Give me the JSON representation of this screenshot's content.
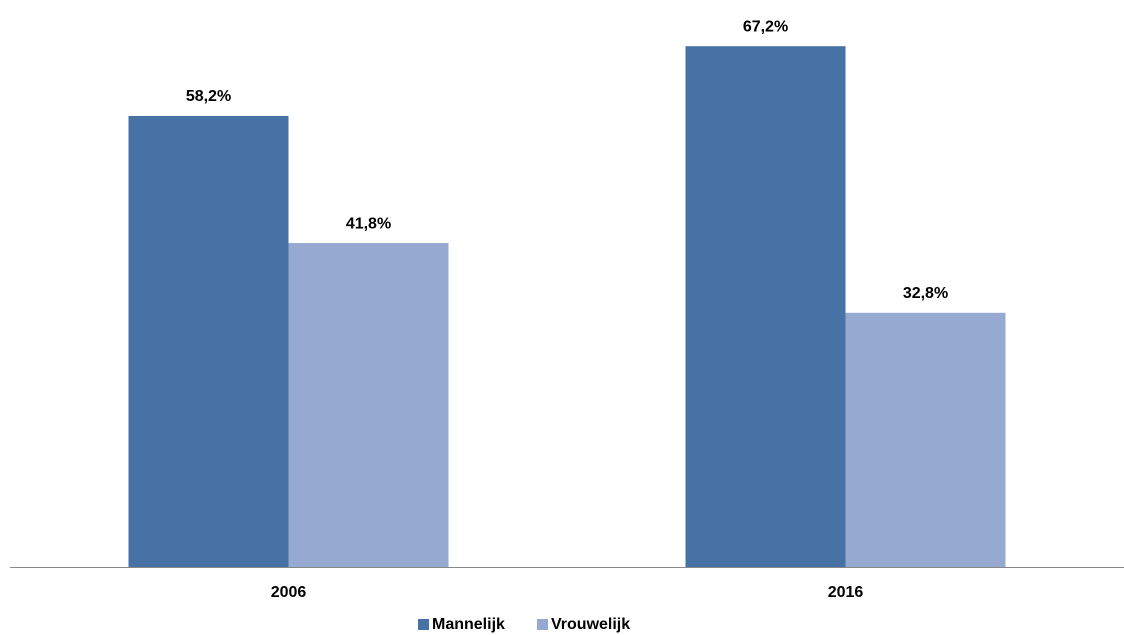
{
  "chart_data": {
    "type": "bar",
    "categories": [
      "2006",
      "2016"
    ],
    "series": [
      {
        "name": "Mannelijk",
        "color": "#4672a6",
        "values": [
          58.2,
          67.2
        ],
        "value_labels": [
          "58,2%",
          "67,2%"
        ]
      },
      {
        "name": "Vrouwelijk",
        "color": "#95a9d1",
        "values": [
          41.8,
          32.8
        ],
        "value_labels": [
          "41,8%",
          "32,8%"
        ]
      }
    ],
    "legend": "bottom"
  }
}
